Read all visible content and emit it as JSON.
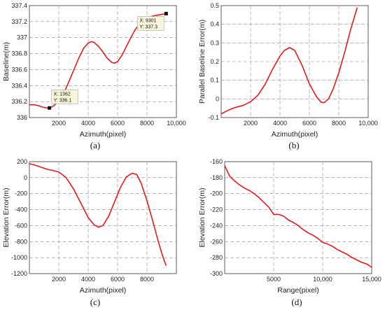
{
  "chart_data": [
    {
      "id": "a",
      "type": "line",
      "caption": "(a)",
      "xlabel": "Azimuth(pixel)",
      "ylabel": "Baseline(m)",
      "xlim": [
        0,
        10000
      ],
      "ylim": [
        336,
        337.4
      ],
      "xticks": [
        2000,
        4000,
        6000,
        8000,
        10000
      ],
      "xtick_labels": [
        "2000",
        "4000",
        "6000",
        "8000",
        "10,000"
      ],
      "yticks": [
        336,
        336.2,
        336.4,
        336.6,
        336.8,
        337,
        337.2,
        337.4
      ],
      "ytick_labels": [
        "336",
        "336.2",
        "336.4",
        "336.6",
        "336.8",
        "337",
        "337.2",
        "337.4"
      ],
      "grid": true,
      "color": "#e31b1b",
      "series": [
        {
          "x": [
            0,
            300,
            600,
            900,
            1200,
            1362,
            1600,
            1900,
            2200,
            2500,
            2800,
            3100,
            3400,
            3700,
            4000,
            4200,
            4400,
            4700,
            5000,
            5300,
            5600,
            5800,
            6000,
            6300,
            6600,
            6900,
            7200,
            7500,
            7800,
            8100,
            8400,
            8700,
            9000,
            9301
          ],
          "y": [
            336.16,
            336.16,
            336.15,
            336.13,
            336.12,
            336.12,
            336.14,
            336.19,
            336.27,
            336.37,
            336.5,
            336.63,
            336.76,
            336.87,
            336.93,
            336.95,
            336.94,
            336.89,
            336.82,
            336.74,
            336.69,
            336.68,
            336.7,
            336.78,
            336.89,
            337.0,
            337.1,
            337.17,
            337.22,
            337.25,
            337.27,
            337.28,
            337.29,
            337.3
          ]
        }
      ],
      "markers": [
        {
          "x": 1362,
          "y": 336.12,
          "label_x": "X: 1362",
          "label_y": "Y: 336.1",
          "tip_side": "above-right"
        },
        {
          "x": 9301,
          "y": 337.3,
          "label_x": "X: 9301",
          "label_y": "Y: 337.3",
          "tip_side": "below-left"
        }
      ]
    },
    {
      "id": "b",
      "type": "line",
      "caption": "(b)",
      "xlabel": "Azimuth(pixel)",
      "ylabel": "Parallel Baseline Error(m)",
      "xlim": [
        0,
        10000
      ],
      "ylim": [
        -0.1,
        0.5
      ],
      "xticks": [
        2000,
        4000,
        6000,
        8000,
        10000
      ],
      "xtick_labels": [
        "2000",
        "4000",
        "6000",
        "8000",
        "10,000"
      ],
      "yticks": [
        -0.1,
        0,
        0.1,
        0.2,
        0.3,
        0.4,
        0.5
      ],
      "ytick_labels": [
        "-0.1",
        "0",
        "0.1",
        "0.2",
        "0.3",
        "0.4",
        "0.5"
      ],
      "grid": true,
      "color": "#e31b1b",
      "series": [
        {
          "x": [
            0,
            500,
            1000,
            1500,
            2000,
            2500,
            3000,
            3500,
            4000,
            4300,
            4650,
            5000,
            5500,
            6000,
            6500,
            6800,
            7000,
            7300,
            7600,
            8000,
            8400,
            8800,
            9100,
            9250
          ],
          "y": [
            -0.08,
            -0.06,
            -0.045,
            -0.035,
            -0.015,
            0.02,
            0.08,
            0.16,
            0.23,
            0.26,
            0.275,
            0.26,
            0.18,
            0.08,
            0.01,
            -0.018,
            -0.02,
            0.0,
            0.05,
            0.14,
            0.25,
            0.37,
            0.45,
            0.49
          ]
        }
      ]
    },
    {
      "id": "c",
      "type": "line",
      "caption": "(c)",
      "xlabel": "Azimuth(pixel)",
      "ylabel": "Elevation Error(m)",
      "xlim": [
        0,
        10000
      ],
      "ylim": [
        -1200,
        200
      ],
      "xticks": [
        2000,
        4000,
        6000,
        8000
      ],
      "xtick_labels": [
        "2000",
        "4000",
        "6000",
        "8000"
      ],
      "yticks": [
        -1200,
        -1000,
        -800,
        -600,
        -400,
        -200,
        0,
        200
      ],
      "ytick_labels": [
        "-1200",
        "-1000",
        "-800",
        "-600",
        "-400",
        "-200",
        "0",
        "200"
      ],
      "grid": true,
      "color": "#e31b1b",
      "series": [
        {
          "x": [
            0,
            400,
            800,
            1200,
            1600,
            2000,
            2500,
            3000,
            3500,
            4000,
            4400,
            4700,
            5000,
            5400,
            5800,
            6200,
            6600,
            7000,
            7300,
            7600,
            8000,
            8400,
            8800,
            9100,
            9300
          ],
          "y": [
            175,
            155,
            130,
            105,
            90,
            70,
            0,
            -140,
            -320,
            -500,
            -590,
            -620,
            -600,
            -480,
            -300,
            -120,
            10,
            55,
            40,
            -70,
            -290,
            -550,
            -820,
            -1000,
            -1100
          ]
        }
      ]
    },
    {
      "id": "d",
      "type": "line",
      "caption": "(d)",
      "xlabel": "Range(pixel)",
      "ylabel": "Elevation Error(m)",
      "xlim": [
        0,
        15000
      ],
      "ylim": [
        -300,
        -160
      ],
      "xticks": [
        5000,
        10000,
        15000
      ],
      "xtick_labels": [
        "5000",
        "10,000",
        "15,000"
      ],
      "yticks": [
        -300,
        -280,
        -260,
        -240,
        -220,
        -200,
        -180,
        -160
      ],
      "ytick_labels": [
        "-300",
        "-280",
        "-260",
        "-240",
        "-220",
        "-200",
        "-180",
        "-160"
      ],
      "grid": true,
      "color": "#e31b1b",
      "series": [
        {
          "x": [
            0,
            500,
            1000,
            1500,
            2000,
            2500,
            3000,
            3500,
            4000,
            4500,
            5000,
            5500,
            6000,
            6500,
            7000,
            7500,
            8000,
            8500,
            9000,
            9500,
            10000,
            10500,
            11000,
            11500,
            12000,
            12500,
            13000,
            13500,
            14000,
            14500,
            15000
          ],
          "y": [
            -165,
            -178,
            -184,
            -189,
            -193,
            -196,
            -200,
            -205,
            -211,
            -217,
            -226,
            -226,
            -228,
            -233,
            -236,
            -240,
            -245,
            -249,
            -252,
            -256,
            -261,
            -263,
            -266,
            -270,
            -273,
            -276,
            -280,
            -283,
            -286,
            -288,
            -292
          ]
        }
      ]
    }
  ]
}
